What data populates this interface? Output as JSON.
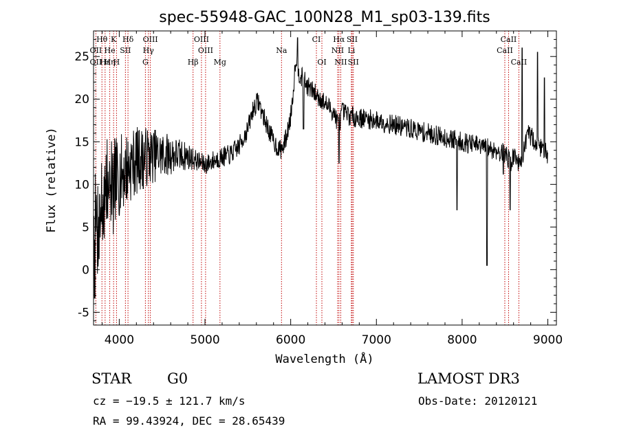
{
  "chart_data": {
    "type": "line",
    "title": "spec-55948-GAC_100N28_M1_sp03-139.fits",
    "xlabel": "Wavelength (Å)",
    "ylabel": "Flux (relative)",
    "xlim": [
      3700,
      9100
    ],
    "ylim": [
      -6.5,
      28
    ],
    "xticks": [
      4000,
      5000,
      6000,
      7000,
      8000,
      9000
    ],
    "yticks": [
      -5,
      0,
      5,
      10,
      15,
      20,
      25
    ],
    "grid": false,
    "spectrum_anchors": [
      [
        3700,
        4.0
      ],
      [
        3760,
        6.5
      ],
      [
        3820,
        8.0
      ],
      [
        3880,
        9.5
      ],
      [
        3950,
        10.5
      ],
      [
        4000,
        11.0
      ],
      [
        4100,
        12.0
      ],
      [
        4200,
        12.8
      ],
      [
        4300,
        13.2
      ],
      [
        4400,
        13.4
      ],
      [
        4600,
        13.5
      ],
      [
        4800,
        13.3
      ],
      [
        4900,
        12.8
      ],
      [
        5000,
        12.3
      ],
      [
        5100,
        12.8
      ],
      [
        5200,
        13.2
      ],
      [
        5300,
        13.5
      ],
      [
        5400,
        14.5
      ],
      [
        5500,
        16.5
      ],
      [
        5560,
        18.8
      ],
      [
        5620,
        19.8
      ],
      [
        5700,
        17.5
      ],
      [
        5800,
        15.0
      ],
      [
        5870,
        14.0
      ],
      [
        5920,
        14.5
      ],
      [
        5960,
        16.0
      ],
      [
        6000,
        18.0
      ],
      [
        6030,
        21.0
      ],
      [
        6060,
        25.0
      ],
      [
        6100,
        23.0
      ],
      [
        6200,
        21.5
      ],
      [
        6300,
        20.5
      ],
      [
        6400,
        19.5
      ],
      [
        6500,
        18.5
      ],
      [
        6560,
        17.0
      ],
      [
        6600,
        18.5
      ],
      [
        6700,
        18.0
      ],
      [
        6800,
        17.8
      ],
      [
        7000,
        17.5
      ],
      [
        7200,
        17.0
      ],
      [
        7400,
        16.5
      ],
      [
        7600,
        16.0
      ],
      [
        7800,
        15.5
      ],
      [
        8000,
        15.0
      ],
      [
        8200,
        14.5
      ],
      [
        8400,
        14.0
      ],
      [
        8520,
        13.5
      ],
      [
        8560,
        12.5
      ],
      [
        8620,
        13.5
      ],
      [
        8680,
        12.0
      ],
      [
        8720,
        14.0
      ],
      [
        8780,
        16.0
      ],
      [
        8850,
        15.0
      ],
      [
        8950,
        14.0
      ],
      [
        9000,
        13.5
      ]
    ],
    "noise": {
      "start": 6.0,
      "end": 1.2,
      "seed": 7
    },
    "absorption_dips": [
      [
        6563,
        12.5
      ],
      [
        8290,
        0.5
      ],
      [
        8480,
        11.2
      ],
      [
        8560,
        7.0
      ],
      [
        7940,
        7.0
      ],
      [
        4280,
        9.5
      ],
      [
        6150,
        16.5
      ]
    ],
    "emission_spikes": [
      [
        6080,
        27.2
      ],
      [
        8700,
        26.0
      ],
      [
        8880,
        25.5
      ],
      [
        8960,
        22.5
      ]
    ],
    "line_markers": [
      {
        "label": "Hθ",
        "x": 3798,
        "row": 0
      },
      {
        "label": "K",
        "x": 3934,
        "row": 0
      },
      {
        "label": "Hδ",
        "x": 4102,
        "row": 0
      },
      {
        "label": "OIII",
        "x": 4363,
        "row": 0
      },
      {
        "label": "OIII",
        "x": 4959,
        "row": 0
      },
      {
        "label": "CI",
        "x": 6300,
        "row": 0
      },
      {
        "label": "Hα",
        "x": 6563,
        "row": 0
      },
      {
        "label": "SII",
        "x": 6717,
        "row": 0
      },
      {
        "label": "CaII",
        "x": 8542,
        "row": 0
      },
      {
        "label": "OII",
        "x": 3727,
        "row": 1
      },
      {
        "label": "He",
        "x": 3889,
        "row": 1
      },
      {
        "label": "SII",
        "x": 4072,
        "row": 1
      },
      {
        "label": "Hγ",
        "x": 4340,
        "row": 1
      },
      {
        "label": "OIII",
        "x": 5007,
        "row": 1
      },
      {
        "label": "Na",
        "x": 5893,
        "row": 1
      },
      {
        "label": "NII",
        "x": 6548,
        "row": 1
      },
      {
        "label": "Li",
        "x": 6708,
        "row": 1
      },
      {
        "label": "CaII",
        "x": 8498,
        "row": 1
      },
      {
        "label": "OII",
        "x": 3727,
        "row": 2
      },
      {
        "label": "Hε",
        "x": 3835,
        "row": 2
      },
      {
        "label": "Hη",
        "x": 3889,
        "row": 2
      },
      {
        "label": "H",
        "x": 3968,
        "row": 2
      },
      {
        "label": "G",
        "x": 4305,
        "row": 2
      },
      {
        "label": "Hβ",
        "x": 4861,
        "row": 2
      },
      {
        "label": "Mg",
        "x": 5175,
        "row": 2
      },
      {
        "label": "OI",
        "x": 6364,
        "row": 2
      },
      {
        "label": "NII",
        "x": 6584,
        "row": 2
      },
      {
        "label": "SII",
        "x": 6731,
        "row": 2
      },
      {
        "label": "CaII",
        "x": 8662,
        "row": 2
      }
    ],
    "marker_color": "#c00000"
  },
  "info": {
    "class_label": "STAR",
    "subclass": "G0",
    "survey": "LAMOST DR3",
    "redshift_text": "cz = −19.5 ± 121.7 km/s",
    "obs_date_text": "Obs-Date: 20120121",
    "coords_text": "RA =  99.43924, DEC =  28.65439"
  }
}
